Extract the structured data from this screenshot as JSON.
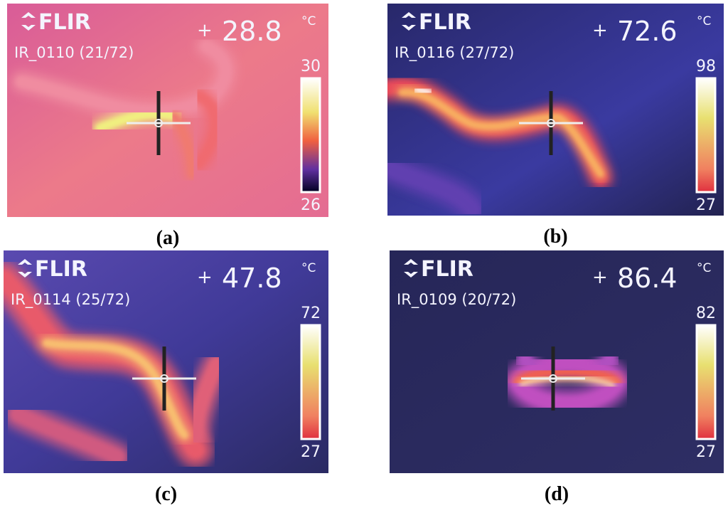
{
  "panels": [
    {
      "brand": "FLIR",
      "temperature": "28.8",
      "unit": "°C",
      "file": "IR_0110 (21/72)",
      "scale_max": "30",
      "scale_min": "26",
      "caption": "(a)"
    },
    {
      "brand": "FLIR",
      "temperature": "72.6",
      "unit": "°C",
      "file": "IR_0116 (27/72)",
      "scale_max": "98",
      "scale_min": "27",
      "caption": "(b)"
    },
    {
      "brand": "FLIR",
      "temperature": "47.8",
      "unit": "°C",
      "file": "IR_0114 (25/72)",
      "scale_max": "72",
      "scale_min": "27",
      "caption": "(c)"
    },
    {
      "brand": "FLIR",
      "temperature": "86.4",
      "unit": "°C",
      "file": "IR_0109 (20/72)",
      "scale_max": "82",
      "scale_min": "27",
      "caption": "(d)"
    }
  ]
}
